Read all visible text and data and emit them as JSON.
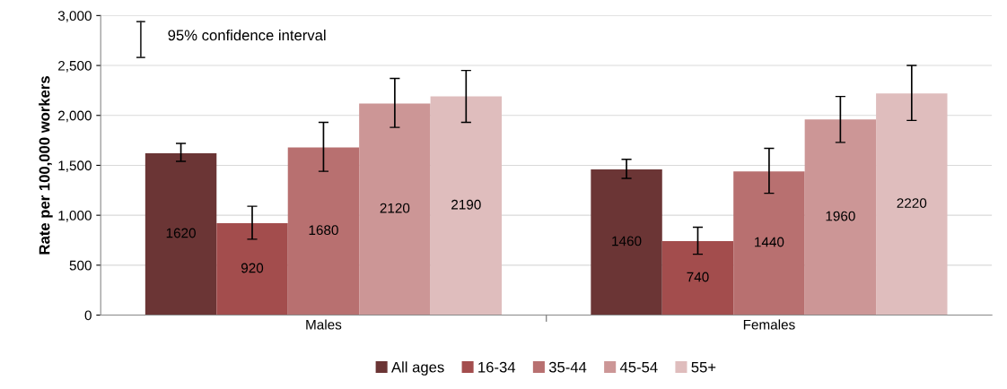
{
  "chart_data": {
    "type": "bar",
    "ylabel": "Rate per 100,000 workers",
    "categories": [
      "Males",
      "Females"
    ],
    "series": [
      {
        "name": "All ages",
        "color": "#6b3535",
        "values": [
          1620,
          1460
        ],
        "errors": [
          [
            1540,
            1720
          ],
          [
            1370,
            1560
          ]
        ]
      },
      {
        "name": "16-34",
        "color": "#a34d4d",
        "values": [
          920,
          740
        ],
        "errors": [
          [
            760,
            1090
          ],
          [
            610,
            880
          ]
        ]
      },
      {
        "name": "35-44",
        "color": "#b87070",
        "values": [
          1680,
          1440
        ],
        "errors": [
          [
            1440,
            1930
          ],
          [
            1220,
            1670
          ]
        ]
      },
      {
        "name": "45-54",
        "color": "#cc9696",
        "values": [
          2120,
          1960
        ],
        "errors": [
          [
            1880,
            2370
          ],
          [
            1730,
            2190
          ]
        ]
      },
      {
        "name": "55+",
        "color": "#dfbdbd",
        "values": [
          2190,
          2220
        ],
        "errors": [
          [
            1930,
            2450
          ],
          [
            1950,
            2500
          ]
        ]
      }
    ],
    "ylim": [
      0,
      3000
    ],
    "yticks": [
      {
        "value": 0,
        "label": "0"
      },
      {
        "value": 500,
        "label": "500"
      },
      {
        "value": 1000,
        "label": "1,000"
      },
      {
        "value": 1500,
        "label": "1,500"
      },
      {
        "value": 2000,
        "label": "2,000"
      },
      {
        "value": 2500,
        "label": "2,500"
      },
      {
        "value": 3000,
        "label": "3,000"
      }
    ],
    "grid": "y",
    "legend": "bottom",
    "data_labels": true,
    "annotations": [
      "95% confidence interval"
    ]
  }
}
